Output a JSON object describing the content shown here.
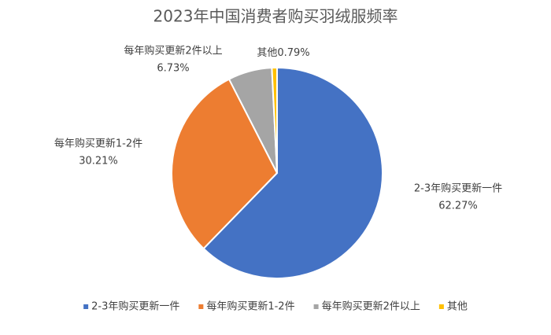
{
  "chart_data": {
    "type": "pie",
    "title": "2023年中国消费者购买羽绒服频率",
    "categories": [
      "2-3年购买更新一件",
      "每年购买更新1-2件",
      "每年购买更新2件以上",
      "其他"
    ],
    "values": [
      62.27,
      30.21,
      6.73,
      0.79
    ],
    "value_labels": [
      "62.27%",
      "30.21%",
      "6.73%",
      "0.79%"
    ],
    "colors": [
      "#4472c4",
      "#ed7d31",
      "#a5a5a5",
      "#ffc000"
    ],
    "legend": "bottom"
  }
}
